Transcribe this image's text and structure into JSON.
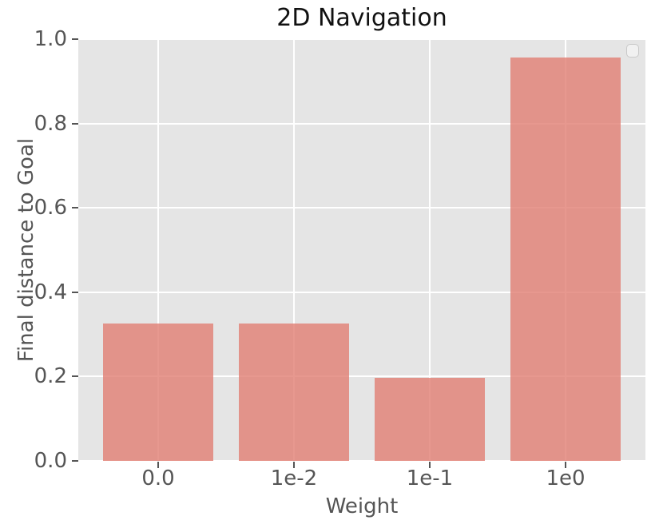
{
  "title": "2D Navigation",
  "colors": {
    "figure_bg": "#ffffff",
    "axes_bg": "#e5e5e5",
    "grid": "#ffffff",
    "bar_fill": "#e2938c",
    "bar_fill_rgba": "rgba(225,126,115,0.80)",
    "tick_text": "#555555",
    "title_text": "#111111",
    "legend_border": "#c9c9c9"
  },
  "chart_data": {
    "type": "bar",
    "title": "2D Navigation",
    "xlabel": "Weight",
    "ylabel": "Final distance to Goal",
    "categories": [
      "0.0",
      "1e-2",
      "1e-1",
      "1e0"
    ],
    "values": [
      0.325,
      0.325,
      0.197,
      0.956
    ],
    "ylim": [
      0.0,
      1.0
    ],
    "yticks": [
      0.0,
      0.2,
      0.4,
      0.6,
      0.8,
      1.0
    ],
    "ytick_labels": [
      "0.0",
      "0.2",
      "0.4",
      "0.6",
      "0.8",
      "1.0"
    ],
    "grid": true,
    "style": "ggplot",
    "bar_color": "#e2938c",
    "legend": {
      "visible": true,
      "position": "upper right",
      "entries": []
    }
  }
}
